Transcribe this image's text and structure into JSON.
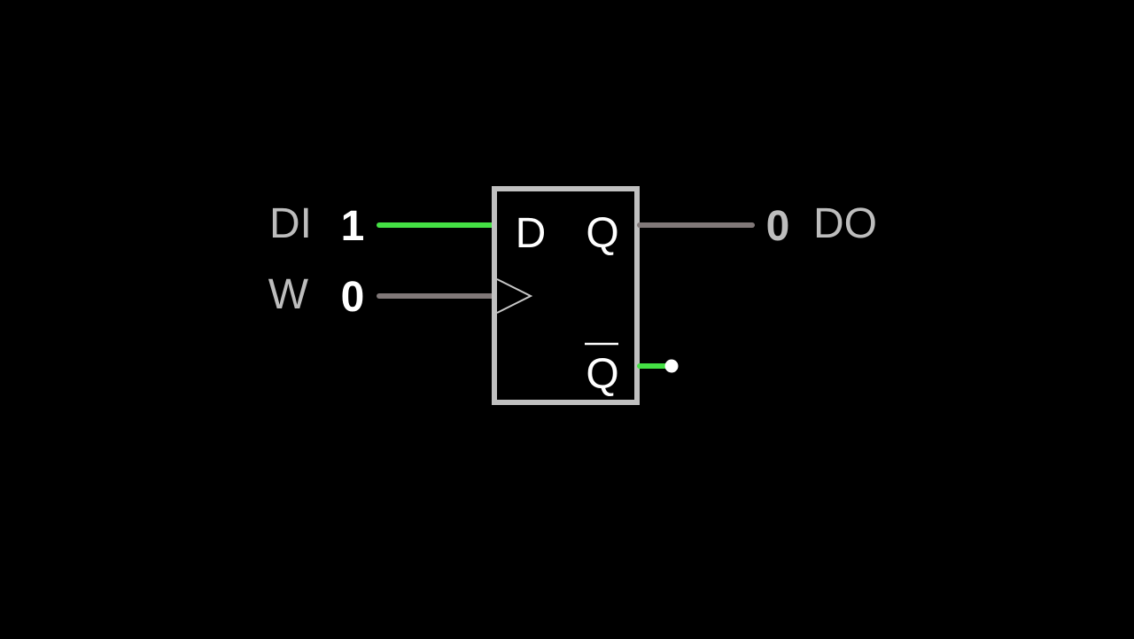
{
  "diagram": {
    "component": "D flip-flop",
    "inputs": [
      {
        "name": "DI",
        "value": "1",
        "active": true
      },
      {
        "name": "W",
        "value": "0",
        "active": false
      }
    ],
    "outputs": [
      {
        "name": "DO",
        "value": "0",
        "active": false
      }
    ],
    "pins": {
      "d": "D",
      "q": "Q",
      "qbar": "Q"
    },
    "colors": {
      "background": "#000000",
      "wire_high": "#44e044",
      "wire_low": "#807878",
      "box": "#c0c0c0",
      "label": "#bdbdbd",
      "value_input": "#ffffff",
      "value_output": "#bdbdbd",
      "pin_text": "#ffffff",
      "endpoint": "#ffffff"
    }
  }
}
